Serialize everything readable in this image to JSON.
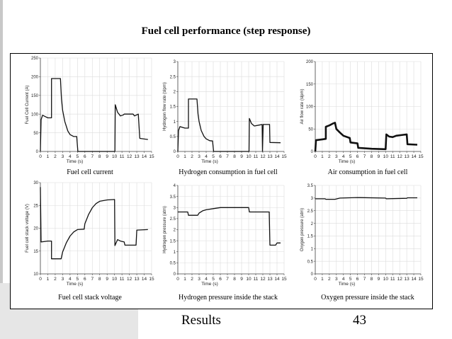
{
  "slide": {
    "title": "Fuel cell performance (step response)",
    "footer_left": "Results",
    "footer_right": "43"
  },
  "chart_data": [
    {
      "type": "line",
      "caption": "Fuel cell current",
      "xlabel": "Time (s)",
      "ylabel": "Fuel Cell Current (A)",
      "xlim": [
        0,
        15
      ],
      "ylim": [
        0,
        250
      ],
      "xticks": [
        0,
        1,
        2,
        3,
        4,
        5,
        6,
        7,
        8,
        9,
        10,
        11,
        12,
        13,
        14,
        15
      ],
      "yticks": [
        0,
        50,
        100,
        150,
        200,
        250
      ],
      "grid": true,
      "series": [
        {
          "values": [
            [
              0,
              0
            ],
            [
              0.1,
              85
            ],
            [
              0.3,
              97
            ],
            [
              0.7,
              93
            ],
            [
              1.0,
              90
            ],
            [
              1.5,
              90
            ],
            [
              1.5,
              195
            ],
            [
              2.7,
              195
            ],
            [
              2.85,
              140
            ],
            [
              3.0,
              110
            ],
            [
              3.3,
              80
            ],
            [
              3.7,
              55
            ],
            [
              4.0,
              45
            ],
            [
              4.5,
              40
            ],
            [
              4.9,
              40
            ],
            [
              5.05,
              0
            ],
            [
              10.05,
              0
            ],
            [
              10.1,
              125
            ],
            [
              10.4,
              105
            ],
            [
              10.8,
              95
            ],
            [
              11.2,
              98
            ],
            [
              11.3,
              100
            ],
            [
              12.5,
              100
            ],
            [
              12.7,
              95
            ],
            [
              13.2,
              100
            ],
            [
              13.4,
              35
            ],
            [
              14.5,
              32
            ]
          ]
        }
      ]
    },
    {
      "type": "line",
      "caption": "Hydrogen consumption in fuel cell",
      "xlabel": "Time (s)",
      "ylabel": "Hydrogen flow rate (slpm)",
      "xlim": [
        0,
        15
      ],
      "ylim": [
        0,
        3
      ],
      "xticks": [
        0,
        1,
        2,
        3,
        4,
        5,
        6,
        7,
        8,
        9,
        10,
        11,
        12,
        13,
        14,
        15
      ],
      "yticks": [
        0,
        0.5,
        1,
        1.5,
        2,
        2.5,
        3
      ],
      "grid": true,
      "series": [
        {
          "values": [
            [
              0,
              0
            ],
            [
              0.1,
              0.7
            ],
            [
              0.3,
              0.83
            ],
            [
              1.0,
              0.78
            ],
            [
              1.5,
              0.78
            ],
            [
              1.5,
              1.75
            ],
            [
              2.7,
              1.75
            ],
            [
              2.85,
              1.25
            ],
            [
              3.0,
              1.0
            ],
            [
              3.3,
              0.7
            ],
            [
              3.7,
              0.5
            ],
            [
              4.0,
              0.42
            ],
            [
              4.5,
              0.36
            ],
            [
              4.9,
              0.35
            ],
            [
              5.05,
              0
            ],
            [
              10.05,
              0
            ],
            [
              10.1,
              1.1
            ],
            [
              10.4,
              0.93
            ],
            [
              10.8,
              0.85
            ],
            [
              11.5,
              0.88
            ],
            [
              11.9,
              0.9
            ],
            [
              11.95,
              0
            ],
            [
              12.05,
              0.9
            ],
            [
              12.95,
              0.9
            ],
            [
              13.0,
              0.3
            ],
            [
              14.5,
              0.29
            ]
          ]
        }
      ]
    },
    {
      "type": "line",
      "caption": "Air consumption in fuel cell",
      "xlabel": "Time (s)",
      "ylabel": "Air flow rate (slpm)",
      "xlim": [
        0,
        15
      ],
      "ylim": [
        0,
        200
      ],
      "xticks": [
        0,
        1,
        2,
        3,
        4,
        5,
        6,
        7,
        8,
        9,
        10,
        11,
        12,
        13,
        14,
        15
      ],
      "yticks": [
        0,
        50,
        100,
        150,
        200
      ],
      "grid": true,
      "series": [
        {
          "values": [
            [
              0,
              0
            ],
            [
              0.1,
              25
            ],
            [
              1.0,
              27
            ],
            [
              1.5,
              28
            ],
            [
              1.5,
              55
            ],
            [
              2.0,
              58
            ],
            [
              2.5,
              62
            ],
            [
              2.8,
              64
            ],
            [
              3.0,
              50
            ],
            [
              3.5,
              42
            ],
            [
              4.0,
              35
            ],
            [
              4.9,
              30
            ],
            [
              5.0,
              20
            ],
            [
              6.0,
              18
            ],
            [
              6.1,
              8
            ],
            [
              8.0,
              6
            ],
            [
              10.0,
              5
            ],
            [
              10.1,
              38
            ],
            [
              10.5,
              33
            ],
            [
              11.0,
              32
            ],
            [
              11.5,
              35
            ],
            [
              12.5,
              37
            ],
            [
              13.0,
              38
            ],
            [
              13.1,
              16
            ],
            [
              14.5,
              15
            ]
          ]
        }
      ]
    },
    {
      "type": "line",
      "caption": "Fuel cell stack voltage",
      "xlabel": "Time (s)",
      "ylabel": "Fuel cell stack voltage (V)",
      "xlim": [
        0,
        15
      ],
      "ylim": [
        10,
        30
      ],
      "xticks": [
        0,
        1,
        2,
        3,
        4,
        5,
        6,
        7,
        8,
        9,
        10,
        11,
        12,
        13,
        14,
        15
      ],
      "yticks": [
        10,
        15,
        20,
        25,
        30
      ],
      "grid": true,
      "series": [
        {
          "values": [
            [
              0,
              29
            ],
            [
              0.1,
              17
            ],
            [
              1.0,
              17.2
            ],
            [
              1.5,
              17.2
            ],
            [
              1.5,
              13.3
            ],
            [
              2.8,
              13.3
            ],
            [
              3.0,
              14.8
            ],
            [
              3.5,
              16.8
            ],
            [
              4.0,
              18.3
            ],
            [
              4.5,
              19.2
            ],
            [
              5.0,
              19.7
            ],
            [
              5.9,
              19.8
            ],
            [
              6.0,
              21
            ],
            [
              6.5,
              23
            ],
            [
              7.0,
              24.5
            ],
            [
              7.5,
              25.4
            ],
            [
              8.0,
              25.9
            ],
            [
              9.0,
              26.2
            ],
            [
              10.0,
              26.3
            ],
            [
              10.05,
              16.2
            ],
            [
              10.4,
              17.5
            ],
            [
              10.8,
              17.2
            ],
            [
              11.3,
              17.0
            ],
            [
              11.4,
              16.3
            ],
            [
              12.9,
              16.3
            ],
            [
              13.0,
              19.6
            ],
            [
              14.5,
              19.7
            ]
          ]
        }
      ]
    },
    {
      "type": "line",
      "caption": "Hydrogen pressure inside the stack",
      "xlabel": "Time (s)",
      "ylabel": "Hydrogen pressure (atm)",
      "xlim": [
        0,
        15
      ],
      "ylim": [
        0,
        4
      ],
      "xticks": [
        0,
        1,
        2,
        3,
        4,
        5,
        6,
        7,
        8,
        9,
        10,
        11,
        12,
        13,
        14,
        15
      ],
      "yticks": [
        0,
        0.5,
        1,
        1.5,
        2,
        2.5,
        3,
        3.5,
        4
      ],
      "grid": true,
      "series": [
        {
          "values": [
            [
              0,
              2.8
            ],
            [
              1.4,
              2.8
            ],
            [
              1.5,
              2.65
            ],
            [
              2.8,
              2.65
            ],
            [
              3.0,
              2.75
            ],
            [
              3.5,
              2.85
            ],
            [
              4.0,
              2.9
            ],
            [
              5.0,
              2.95
            ],
            [
              6.0,
              3.0
            ],
            [
              10.0,
              3.0
            ],
            [
              10.1,
              2.8
            ],
            [
              12.9,
              2.8
            ],
            [
              13.0,
              1.3
            ],
            [
              13.8,
              1.3
            ],
            [
              14.0,
              1.4
            ],
            [
              14.5,
              1.4
            ]
          ]
        }
      ]
    },
    {
      "type": "line",
      "caption": "Oxygen pressure inside the stack",
      "xlabel": "Time (s)",
      "ylabel": "Oxygen pressure (atm)",
      "xlim": [
        0,
        15
      ],
      "ylim": [
        0,
        3.5
      ],
      "xticks": [
        0,
        1,
        2,
        3,
        4,
        5,
        6,
        7,
        8,
        9,
        10,
        11,
        12,
        13,
        14,
        15
      ],
      "yticks": [
        0,
        0.5,
        1,
        1.5,
        2,
        2.5,
        3,
        3.5
      ],
      "grid": true,
      "series": [
        {
          "values": [
            [
              0,
              2.97
            ],
            [
              1.4,
              2.97
            ],
            [
              1.5,
              2.95
            ],
            [
              2.8,
              2.95
            ],
            [
              3.5,
              3.0
            ],
            [
              6.0,
              3.02
            ],
            [
              10.0,
              3.0
            ],
            [
              10.1,
              2.97
            ],
            [
              13.0,
              2.99
            ],
            [
              13.1,
              3.01
            ],
            [
              14.5,
              3.01
            ]
          ]
        }
      ]
    }
  ]
}
